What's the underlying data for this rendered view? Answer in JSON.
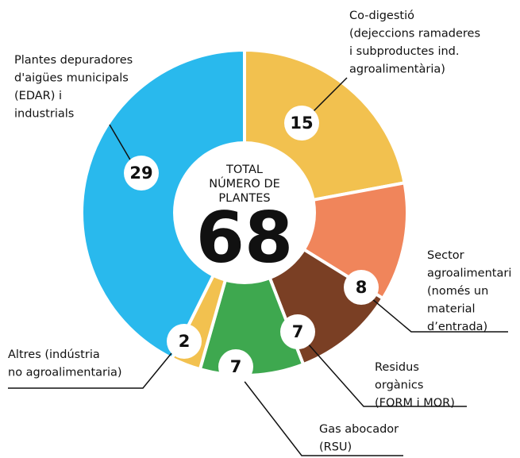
{
  "chart_data": {
    "type": "pie",
    "center_title": [
      "TOTAL",
      "NÚMERO DE",
      "PLANTES"
    ],
    "total": 68,
    "categories": [
      [
        "Co-digestió",
        "(dejeccions ramaderes",
        "i subproductes ind.",
        "agroalimentària)"
      ],
      [
        "Sector",
        "agroalimentari",
        "(només un",
        "material",
        "d’entrada)"
      ],
      [
        "Residus",
        "orgànics",
        "(FORM i MOR)"
      ],
      [
        "Gas abocador",
        "(RSU)"
      ],
      [
        "Altres (indústria",
        "no agroalimentaria)"
      ],
      [
        "Plantes depuradores",
        "d'aigües municipals",
        "(EDAR) i",
        "industrials"
      ]
    ],
    "values": [
      15,
      8,
      7,
      7,
      2,
      29
    ],
    "colors": [
      "#f2c14f",
      "#f0855b",
      "#7a3f24",
      "#3ea84f",
      "#f2c14f",
      "#29b9ed"
    ]
  }
}
